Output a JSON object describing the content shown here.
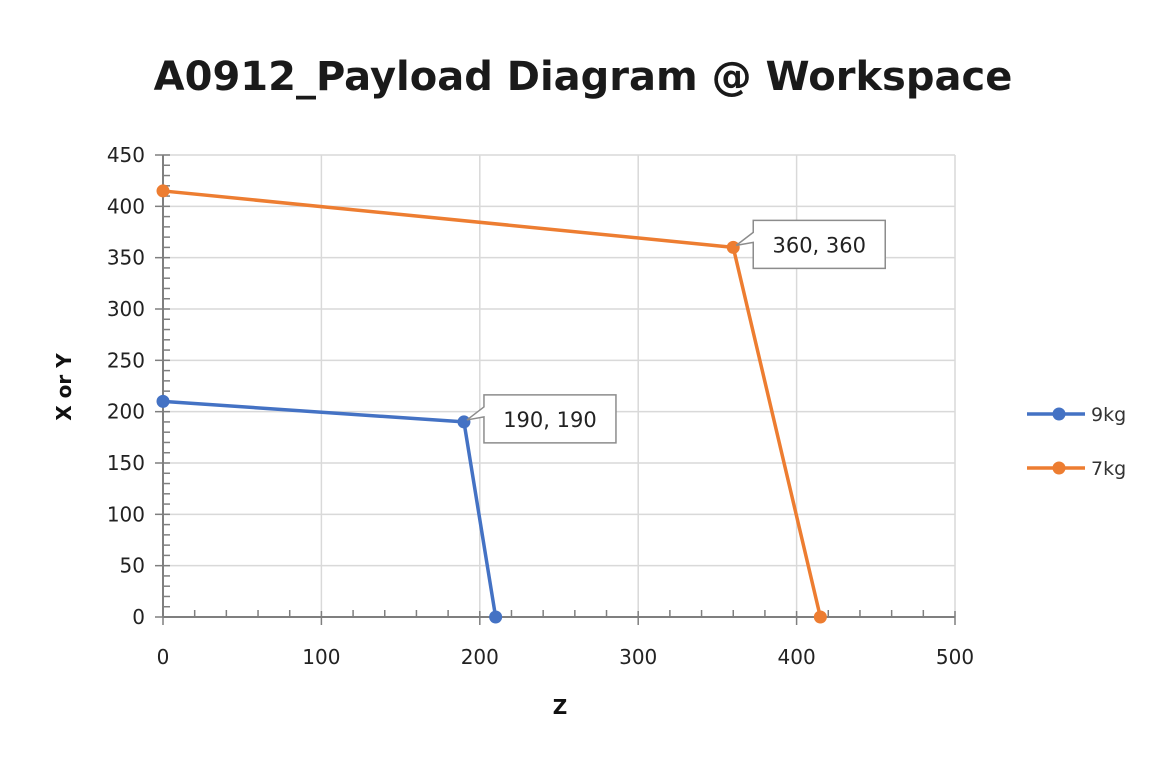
{
  "chart_data": {
    "type": "scatter",
    "title": "A0912_Payload Diagram @ Workspace",
    "xlabel": "Z",
    "ylabel": "X or Y",
    "xlim": [
      0,
      500
    ],
    "ylim": [
      0,
      450
    ],
    "xticks": [
      "0",
      "100",
      "200",
      "300",
      "400",
      "500"
    ],
    "yticks": [
      "0",
      "50",
      "100",
      "150",
      "200",
      "250",
      "300",
      "350",
      "400",
      "450"
    ],
    "grid": true,
    "legend_position": "right",
    "series": [
      {
        "name": "9kg",
        "color": "#4472C4",
        "x": [
          0,
          190,
          210
        ],
        "y": [
          210,
          190,
          0
        ],
        "annotation": {
          "text": "190, 190",
          "x": 190,
          "y": 190
        }
      },
      {
        "name": "7kg",
        "color": "#ED7D31",
        "x": [
          0,
          360,
          415
        ],
        "y": [
          415,
          360,
          0
        ],
        "annotation": {
          "text": "360, 360",
          "x": 360,
          "y": 360
        }
      }
    ]
  }
}
